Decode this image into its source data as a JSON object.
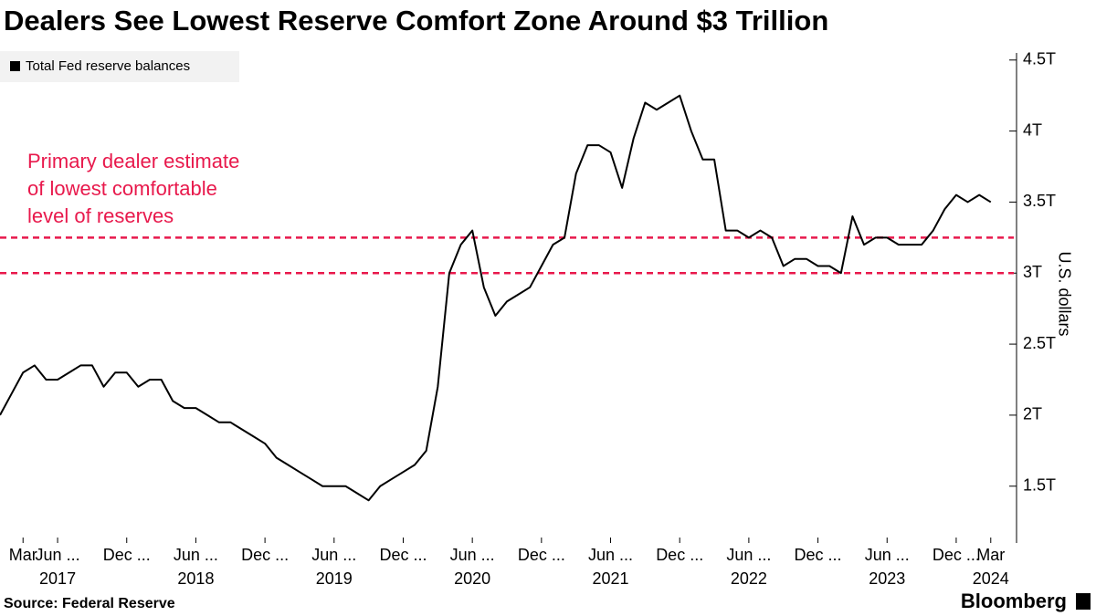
{
  "chart_data": {
    "type": "line",
    "title": "Dealers See Lowest Reserve Comfort Zone Around $3 Trillion",
    "y_axis_label": "U.S. dollars",
    "source": "Source: Federal Reserve",
    "brand": "Bloomberg",
    "annotation_lines": [
      "Primary dealer estimate",
      "of lowest comfortable",
      "level of reserves"
    ],
    "reference_lines": [
      3,
      3.25
    ],
    "reference_color": "#e8194c",
    "xlim": [
      "2017-01",
      "2024-05"
    ],
    "ylim": [
      1.1,
      4.55
    ],
    "yticks": [
      {
        "value": 1.5,
        "label": "1.5T"
      },
      {
        "value": 2,
        "label": "2T"
      },
      {
        "value": 2.5,
        "label": "2.5T"
      },
      {
        "value": 3,
        "label": "3T"
      },
      {
        "value": 3.5,
        "label": "3.5T"
      },
      {
        "value": 4,
        "label": "4T"
      },
      {
        "value": 4.5,
        "label": "4.5T"
      }
    ],
    "xticks": [
      {
        "value": "2017-03",
        "label": "Mar"
      },
      {
        "value": "2017-06",
        "label": "Jun ..."
      },
      {
        "value": "2017-12",
        "label": "Dec ..."
      },
      {
        "value": "2018-06",
        "label": "Jun ..."
      },
      {
        "value": "2018-12",
        "label": "Dec ..."
      },
      {
        "value": "2019-06",
        "label": "Jun ..."
      },
      {
        "value": "2019-12",
        "label": "Dec ..."
      },
      {
        "value": "2020-06",
        "label": "Jun ..."
      },
      {
        "value": "2020-12",
        "label": "Dec ..."
      },
      {
        "value": "2021-06",
        "label": "Jun ..."
      },
      {
        "value": "2021-12",
        "label": "Dec ..."
      },
      {
        "value": "2022-06",
        "label": "Jun ..."
      },
      {
        "value": "2022-12",
        "label": "Dec ..."
      },
      {
        "value": "2023-06",
        "label": "Jun ..."
      },
      {
        "value": "2023-12",
        "label": "Dec ..."
      },
      {
        "value": "2024-03",
        "label": "Mar"
      }
    ],
    "x_year_labels": [
      {
        "value": "2017-06",
        "label": "2017"
      },
      {
        "value": "2018-06",
        "label": "2018"
      },
      {
        "value": "2019-06",
        "label": "2019"
      },
      {
        "value": "2020-06",
        "label": "2020"
      },
      {
        "value": "2021-06",
        "label": "2021"
      },
      {
        "value": "2022-06",
        "label": "2022"
      },
      {
        "value": "2023-06",
        "label": "2023"
      },
      {
        "value": "2024-03",
        "label": "2024"
      }
    ],
    "x": [
      "2017-01",
      "2017-02",
      "2017-03",
      "2017-04",
      "2017-05",
      "2017-06",
      "2017-07",
      "2017-08",
      "2017-09",
      "2017-10",
      "2017-11",
      "2017-12",
      "2018-01",
      "2018-02",
      "2018-03",
      "2018-04",
      "2018-05",
      "2018-06",
      "2018-07",
      "2018-08",
      "2018-09",
      "2018-10",
      "2018-11",
      "2018-12",
      "2019-01",
      "2019-02",
      "2019-03",
      "2019-04",
      "2019-05",
      "2019-06",
      "2019-07",
      "2019-08",
      "2019-09",
      "2019-10",
      "2019-11",
      "2019-12",
      "2020-01",
      "2020-02",
      "2020-03",
      "2020-04",
      "2020-05",
      "2020-06",
      "2020-07",
      "2020-08",
      "2020-09",
      "2020-10",
      "2020-11",
      "2020-12",
      "2021-01",
      "2021-02",
      "2021-03",
      "2021-04",
      "2021-05",
      "2021-06",
      "2021-07",
      "2021-08",
      "2021-09",
      "2021-10",
      "2021-11",
      "2021-12",
      "2022-01",
      "2022-02",
      "2022-03",
      "2022-04",
      "2022-05",
      "2022-06",
      "2022-07",
      "2022-08",
      "2022-09",
      "2022-10",
      "2022-11",
      "2022-12",
      "2023-01",
      "2023-02",
      "2023-03",
      "2023-04",
      "2023-05",
      "2023-06",
      "2023-07",
      "2023-08",
      "2023-09",
      "2023-10",
      "2023-11",
      "2023-12",
      "2024-01",
      "2024-02",
      "2024-03"
    ],
    "series": [
      {
        "name": "Total Fed reserve balances",
        "color": "#000000",
        "values": [
          2.0,
          2.15,
          2.3,
          2.35,
          2.25,
          2.25,
          2.3,
          2.35,
          2.35,
          2.2,
          2.3,
          2.3,
          2.2,
          2.25,
          2.25,
          2.1,
          2.05,
          2.05,
          2.0,
          1.95,
          1.95,
          1.9,
          1.85,
          1.8,
          1.7,
          1.65,
          1.6,
          1.55,
          1.5,
          1.5,
          1.5,
          1.45,
          1.4,
          1.5,
          1.55,
          1.6,
          1.65,
          1.75,
          2.2,
          3.0,
          3.2,
          3.3,
          2.9,
          2.7,
          2.8,
          2.85,
          2.9,
          3.05,
          3.2,
          3.25,
          3.7,
          3.9,
          3.9,
          3.85,
          3.6,
          3.95,
          4.2,
          4.15,
          4.2,
          4.25,
          4.0,
          3.8,
          3.8,
          3.3,
          3.3,
          3.25,
          3.3,
          3.25,
          3.05,
          3.1,
          3.1,
          3.05,
          3.05,
          3.0,
          3.4,
          3.2,
          3.25,
          3.25,
          3.2,
          3.2,
          3.2,
          3.3,
          3.45,
          3.55,
          3.5,
          3.55,
          3.5
        ]
      }
    ]
  }
}
